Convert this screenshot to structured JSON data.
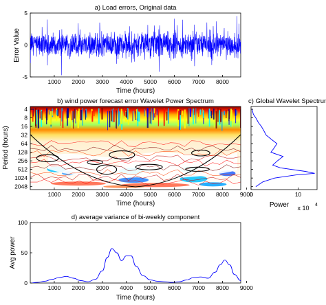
{
  "chart_data": [
    {
      "panel": "a",
      "type": "line",
      "title": "a) Load errors, Original data",
      "xlabel": "Time (hours)",
      "ylabel": "Error Value",
      "xlim": [
        0,
        8760
      ],
      "ylim": [
        -5,
        5
      ],
      "xticks": [
        1000,
        2000,
        3000,
        4000,
        5000,
        6000,
        7000,
        8000
      ],
      "yticks": [
        -5,
        0,
        5
      ],
      "color": "#0000ff",
      "series_summary": "noisy hourly error signal centred on 0, mostly within ±2, spikes up to about ±5"
    },
    {
      "panel": "b",
      "type": "heatmap",
      "title": "b) wind power forecast error Wavelet Power Spectrum",
      "xlabel": "Time (hours)",
      "ylabel": "Period (hours)",
      "xlim": [
        0,
        8760
      ],
      "xticks": [
        1000,
        2000,
        3000,
        4000,
        5000,
        6000,
        7000,
        8000,
        9000
      ],
      "yticks": [
        4,
        8,
        16,
        32,
        64,
        128,
        256,
        512,
        1024,
        2048
      ],
      "y_scale": "log2, period increasing downward",
      "colormap": "jet (blue low to red high)",
      "description_elements": [
        "high power at short periods (4-32 h)",
        "cone of influence",
        "contour lines"
      ]
    },
    {
      "panel": "c",
      "type": "line",
      "title": "c) Global Wavelet Spectrum",
      "xlabel": "Power",
      "xscale_note": "x 10",
      "xscale_exp": "4",
      "xticks": [
        0,
        10
      ],
      "xlim": [
        0,
        14
      ],
      "y_shared_with": "b",
      "color": "#0000ff",
      "points": [
        {
          "period": 4,
          "power": 0.2
        },
        {
          "period": 6,
          "power": 0.5
        },
        {
          "period": 8,
          "power": 1.0
        },
        {
          "period": 12,
          "power": 1.6
        },
        {
          "period": 16,
          "power": 2.2
        },
        {
          "period": 24,
          "power": 2.8
        },
        {
          "period": 32,
          "power": 3.2
        },
        {
          "period": 48,
          "power": 4.5
        },
        {
          "period": 64,
          "power": 5.5
        },
        {
          "period": 96,
          "power": 4.8
        },
        {
          "period": 128,
          "power": 4.2
        },
        {
          "period": 180,
          "power": 6.8
        },
        {
          "period": 256,
          "power": 5.6
        },
        {
          "period": 360,
          "power": 4.6
        },
        {
          "period": 450,
          "power": 6.2
        },
        {
          "period": 600,
          "power": 11.5
        },
        {
          "period": 700,
          "power": 13.5
        },
        {
          "period": 800,
          "power": 9.5
        },
        {
          "period": 1024,
          "power": 5.0
        },
        {
          "period": 1400,
          "power": 2.5
        },
        {
          "period": 2048,
          "power": 1.0
        }
      ]
    },
    {
      "panel": "d",
      "type": "line",
      "title": "d) average variance of bi-weekly component",
      "xlabel": "Time (hours)",
      "ylabel": "Avg power",
      "xlim": [
        0,
        8760
      ],
      "ylim": [
        0,
        100
      ],
      "xticks": [
        1000,
        2000,
        3000,
        4000,
        5000,
        6000,
        7000,
        8000,
        9000
      ],
      "yticks": [
        0,
        50,
        100
      ],
      "color": "#0000ff",
      "x": [
        0,
        300,
        600,
        900,
        1200,
        1500,
        1800,
        2100,
        2400,
        2700,
        3000,
        3200,
        3400,
        3600,
        3800,
        4000,
        4200,
        4400,
        4700,
        5000,
        5300,
        5600,
        5900,
        6200,
        6500,
        6800,
        7100,
        7400,
        7700,
        7900,
        8100,
        8300,
        8500,
        8760
      ],
      "y": [
        0,
        1,
        3,
        6,
        9,
        11,
        8,
        4,
        2,
        6,
        20,
        42,
        57,
        50,
        37,
        45,
        45,
        28,
        12,
        5,
        3,
        2,
        1,
        2,
        5,
        9,
        10,
        8,
        18,
        30,
        38,
        30,
        14,
        4
      ]
    }
  ]
}
